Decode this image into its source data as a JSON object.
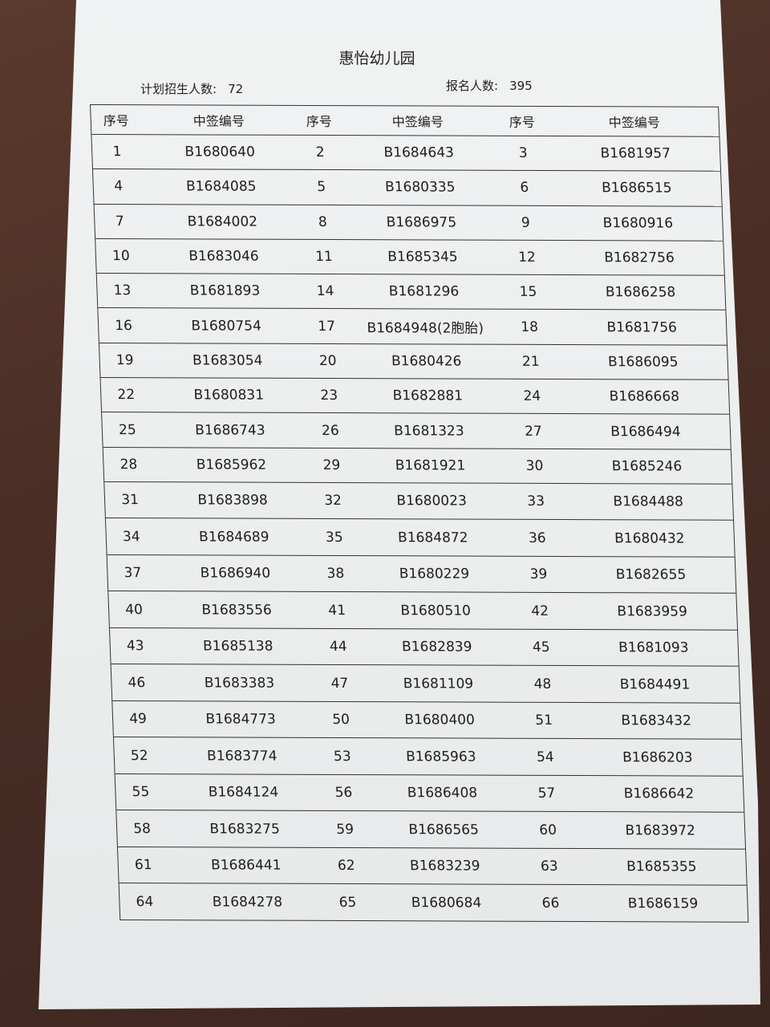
{
  "title": "惠怡幼儿园",
  "plan": {
    "label": "计划招生人数:",
    "value": "72"
  },
  "applicants": {
    "label": "报名人数:",
    "value": "395"
  },
  "headers": [
    "序号",
    "中签编号",
    "序号",
    "中签编号",
    "序号",
    "中签编号"
  ],
  "rows": [
    [
      [
        "1",
        "B1680640"
      ],
      [
        "2",
        "B1684643"
      ],
      [
        "3",
        "B1681957"
      ]
    ],
    [
      [
        "4",
        "B1684085"
      ],
      [
        "5",
        "B1680335"
      ],
      [
        "6",
        "B1686515"
      ]
    ],
    [
      [
        "7",
        "B1684002"
      ],
      [
        "8",
        "B1686975"
      ],
      [
        "9",
        "B1680916"
      ]
    ],
    [
      [
        "10",
        "B1683046"
      ],
      [
        "11",
        "B1685345"
      ],
      [
        "12",
        "B1682756"
      ]
    ],
    [
      [
        "13",
        "B1681893"
      ],
      [
        "14",
        "B1681296"
      ],
      [
        "15",
        "B1686258"
      ]
    ],
    [
      [
        "16",
        "B1680754"
      ],
      [
        "17",
        "B1684948(2胞胎)"
      ],
      [
        "18",
        "B1681756"
      ]
    ],
    [
      [
        "19",
        "B1683054"
      ],
      [
        "20",
        "B1680426"
      ],
      [
        "21",
        "B1686095"
      ]
    ],
    [
      [
        "22",
        "B1680831"
      ],
      [
        "23",
        "B1682881"
      ],
      [
        "24",
        "B1686668"
      ]
    ],
    [
      [
        "25",
        "B1686743"
      ],
      [
        "26",
        "B1681323"
      ],
      [
        "27",
        "B1686494"
      ]
    ],
    [
      [
        "28",
        "B1685962"
      ],
      [
        "29",
        "B1681921"
      ],
      [
        "30",
        "B1685246"
      ]
    ],
    [
      [
        "31",
        "B1683898"
      ],
      [
        "32",
        "B1680023"
      ],
      [
        "33",
        "B1684488"
      ]
    ],
    [
      [
        "34",
        "B1684689"
      ],
      [
        "35",
        "B1684872"
      ],
      [
        "36",
        "B1680432"
      ]
    ],
    [
      [
        "37",
        "B1686940"
      ],
      [
        "38",
        "B1680229"
      ],
      [
        "39",
        "B1682655"
      ]
    ],
    [
      [
        "40",
        "B1683556"
      ],
      [
        "41",
        "B1680510"
      ],
      [
        "42",
        "B1683959"
      ]
    ],
    [
      [
        "43",
        "B1685138"
      ],
      [
        "44",
        "B1682839"
      ],
      [
        "45",
        "B1681093"
      ]
    ],
    [
      [
        "46",
        "B1683383"
      ],
      [
        "47",
        "B1681109"
      ],
      [
        "48",
        "B1684491"
      ]
    ],
    [
      [
        "49",
        "B1684773"
      ],
      [
        "50",
        "B1680400"
      ],
      [
        "51",
        "B1683432"
      ]
    ],
    [
      [
        "52",
        "B1683774"
      ],
      [
        "53",
        "B1685963"
      ],
      [
        "54",
        "B1686203"
      ]
    ],
    [
      [
        "55",
        "B1684124"
      ],
      [
        "56",
        "B1686408"
      ],
      [
        "57",
        "B1686642"
      ]
    ],
    [
      [
        "58",
        "B1683275"
      ],
      [
        "59",
        "B1686565"
      ],
      [
        "60",
        "B1683972"
      ]
    ],
    [
      [
        "61",
        "B1686441"
      ],
      [
        "62",
        "B1683239"
      ],
      [
        "63",
        "B1685355"
      ]
    ],
    [
      [
        "64",
        "B1684278"
      ],
      [
        "65",
        "B1680684"
      ],
      [
        "66",
        "B1686159"
      ]
    ]
  ]
}
